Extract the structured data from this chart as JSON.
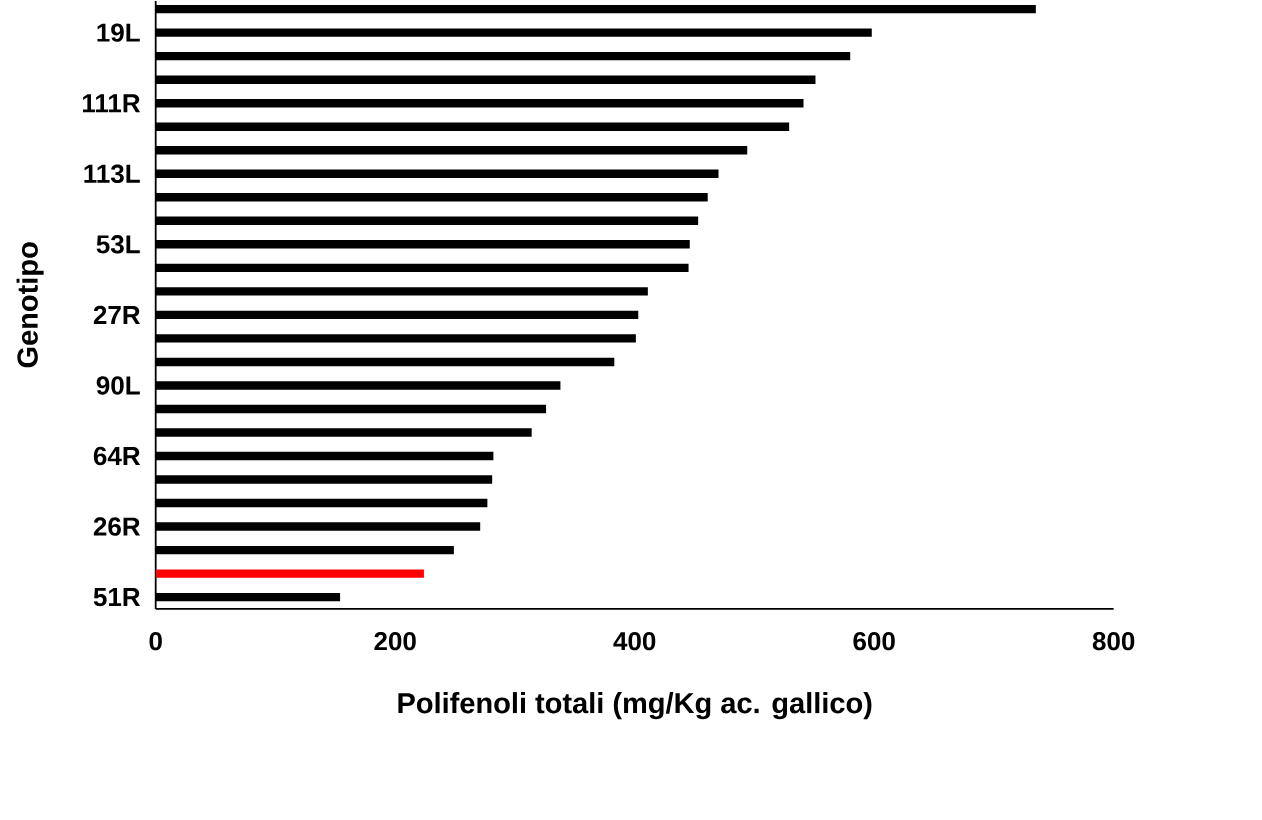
{
  "chart_data": {
    "type": "bar",
    "orientation": "horizontal",
    "xlabel": "Polifenoli totali (mg/Kg ac. gallico)",
    "ylabel": "Genotipo",
    "categories": [
      null,
      "19L",
      null,
      null,
      "111R",
      null,
      null,
      "113L",
      null,
      null,
      "53L",
      null,
      null,
      "27R",
      null,
      null,
      "90L",
      null,
      null,
      "64R",
      null,
      null,
      "26R",
      null,
      null,
      "51R"
    ],
    "values": [
      735,
      598,
      580,
      551,
      541,
      529,
      494,
      470,
      461,
      453,
      446,
      445,
      411,
      403,
      401,
      383,
      338,
      326,
      314,
      282,
      281,
      277,
      271,
      249,
      224,
      154
    ],
    "colors": [
      "#000000",
      "#000000",
      "#000000",
      "#000000",
      "#000000",
      "#000000",
      "#000000",
      "#000000",
      "#000000",
      "#000000",
      "#000000",
      "#000000",
      "#000000",
      "#000000",
      "#000000",
      "#000000",
      "#000000",
      "#000000",
      "#000000",
      "#000000",
      "#000000",
      "#000000",
      "#000000",
      "#000000",
      "#ff0000",
      "#000000"
    ],
    "xlim": [
      0,
      800
    ],
    "xticks": [
      0,
      200,
      400,
      600,
      800
    ]
  }
}
